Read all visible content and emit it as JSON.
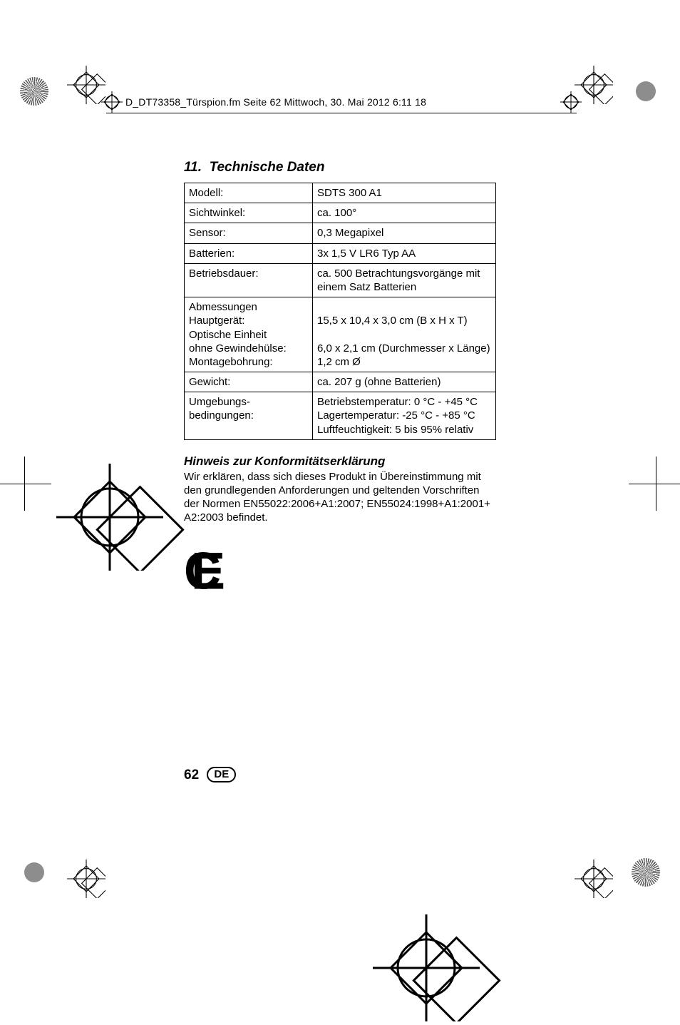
{
  "header": {
    "filename": "D_DT73358_Türspion.fm  Seite 62  Mittwoch, 30. Mai 2012  6:11 18"
  },
  "section": {
    "number": "11.",
    "title": "Technische Daten"
  },
  "table": {
    "rows": [
      {
        "label": "Modell:",
        "value": "SDTS 300 A1"
      },
      {
        "label": "Sichtwinkel:",
        "value": "ca. 100°"
      },
      {
        "label": "Sensor:",
        "value": "0,3 Megapixel"
      },
      {
        "label": "Batterien:",
        "value": "3x 1,5 V LR6 Typ AA"
      },
      {
        "label": "Betriebsdauer:",
        "value": "ca. 500 Betrachtungsvorgänge mit einem Satz Batterien"
      },
      {
        "label": "Abmessungen\nHauptgerät:\nOptische Einheit\nohne Gewindehülse:\nMontagebohrung:",
        "value": "\n15,5 x 10,4 x 3,0 cm (B x H x T)\n\n6,0 x 2,1 cm (Durchmesser x Länge)\n1,2 cm Ø"
      },
      {
        "label": "Gewicht:",
        "value": "ca. 207 g (ohne Batterien)"
      },
      {
        "label": "Umgebungs-\nbedingungen:",
        "value": "Betriebstemperatur: 0 °C - +45 °C\nLagertemperatur: -25 °C - +85 °C\nLuftfeuchtigkeit: 5 bis 95% relativ"
      }
    ]
  },
  "conformity": {
    "heading": "Hinweis zur Konformitätserklärung",
    "text": "Wir erklären, dass sich dieses Produkt in Übereinstimmung mit den grundlegenden Anforderungen und geltenden Vorschriften der Normen EN55022:2006+A1:2007; EN55024:1998+A1:2001+ A2:2003 befindet."
  },
  "ce_mark": "C E",
  "footer": {
    "page": "62",
    "country": "DE"
  }
}
